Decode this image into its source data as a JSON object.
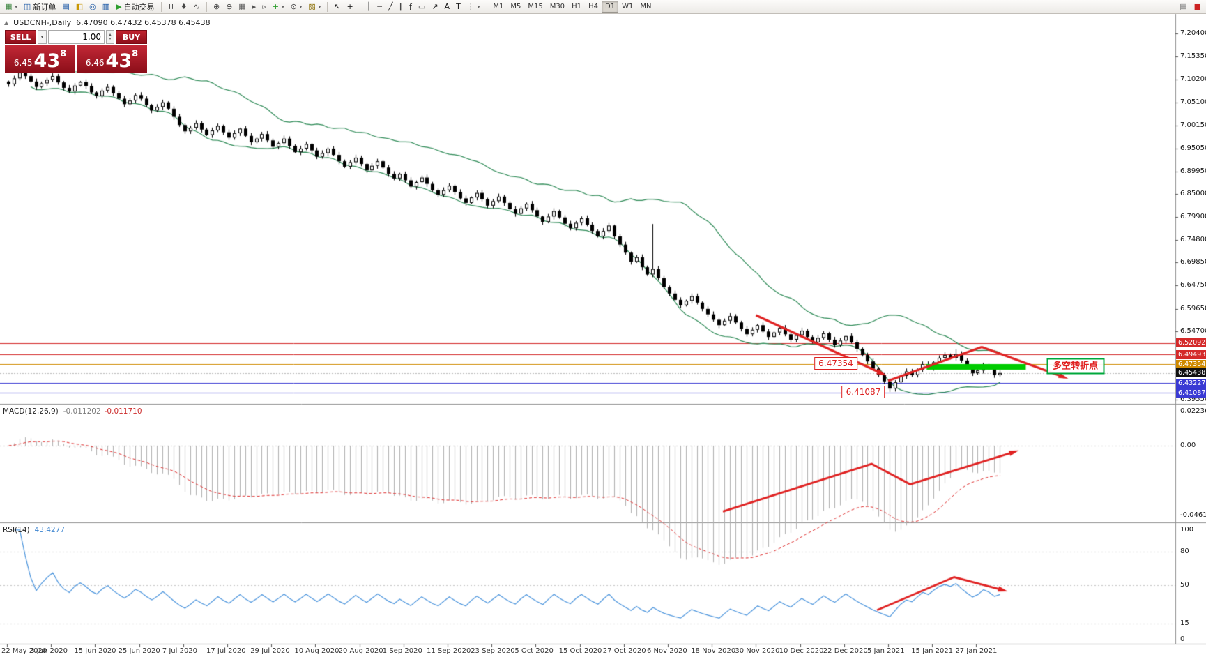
{
  "symbol_info": {
    "title": "USDCNH-,Daily",
    "ohlc": "6.47090 6.47432 6.45378 6.45438"
  },
  "toolbar": {
    "left_items": [
      {
        "name": "new-chart",
        "glyph": "▦",
        "color": "#2e7d32",
        "caret": true
      },
      {
        "name": "new-order",
        "glyph": "◫",
        "label": "新订单",
        "color": "#1a57a5"
      },
      {
        "name": "market-watch",
        "glyph": "▤",
        "color": "#1a57a5"
      },
      {
        "name": "data-window",
        "glyph": "◧",
        "color": "#c99700"
      },
      {
        "name": "navigator",
        "glyph": "◎",
        "color": "#1a57a5"
      },
      {
        "name": "terminal",
        "glyph": "▥",
        "color": "#1a57a5"
      },
      {
        "name": "autotrading",
        "glyph": "▶",
        "label": "自动交易",
        "color": "#2e9f2e"
      },
      {
        "sep": true
      },
      {
        "name": "bar-chart",
        "glyph": "≡",
        "color": "#444",
        "rot": true
      },
      {
        "name": "candlestick-chart",
        "glyph": "♦",
        "color": "#444"
      },
      {
        "name": "line-chart",
        "glyph": "∿",
        "color": "#444"
      },
      {
        "sep": true
      },
      {
        "name": "zoom-in",
        "glyph": "⊕",
        "color": "#444"
      },
      {
        "name": "zoom-out",
        "glyph": "⊖",
        "color": "#444"
      },
      {
        "name": "tile-windows",
        "glyph": "▦",
        "color": "#555"
      },
      {
        "name": "auto-scroll",
        "glyph": "▸",
        "color": "#555"
      },
      {
        "name": "chart-shift",
        "glyph": "▹",
        "color": "#555"
      },
      {
        "name": "indicators",
        "glyph": "+",
        "color": "#2e9f2e",
        "caret": true
      },
      {
        "name": "periods",
        "glyph": "⊙",
        "color": "#444",
        "caret": true
      },
      {
        "name": "templates",
        "glyph": "▧",
        "color": "#8a6d00",
        "caret": true
      },
      {
        "sep": true
      },
      {
        "name": "cursor",
        "glyph": "↖",
        "color": "#222"
      },
      {
        "name": "crosshair",
        "glyph": "+",
        "color": "#222"
      },
      {
        "sep": true
      },
      {
        "name": "vertical-line",
        "glyph": "│",
        "color": "#222"
      },
      {
        "name": "horizontal-line",
        "glyph": "─",
        "color": "#222"
      },
      {
        "name": "trendline",
        "glyph": "╱",
        "color": "#222"
      },
      {
        "name": "equidistant-channel",
        "glyph": "∥",
        "color": "#222"
      },
      {
        "name": "fibonacci",
        "glyph": "ƒ",
        "color": "#222"
      },
      {
        "name": "shapes",
        "glyph": "▭",
        "color": "#222"
      },
      {
        "name": "arrows",
        "glyph": "↗",
        "color": "#222"
      },
      {
        "name": "text",
        "glyph": "A",
        "color": "#222"
      },
      {
        "name": "text-label",
        "glyph": "T",
        "color": "#222"
      },
      {
        "name": "more-tools",
        "glyph": "⋮",
        "color": "#222",
        "caret": true
      }
    ],
    "timeframes": [
      "M1",
      "M5",
      "M15",
      "M30",
      "H1",
      "H4",
      "D1",
      "W1",
      "MN"
    ],
    "active_timeframe": "D1",
    "right_items": [
      {
        "name": "chart-list",
        "glyph": "▤",
        "color": "#777"
      },
      {
        "name": "alert",
        "glyph": "■",
        "color": "#cc2222"
      }
    ]
  },
  "tr": "",
  "trade_panel": {
    "sell_label": "SELL",
    "buy_label": "BUY",
    "volume": "1.00",
    "sell_price": {
      "prefix": "6.45",
      "big": "43",
      "sup": "8"
    },
    "buy_price": {
      "prefix": "6.46",
      "big": "43",
      "sup": "8"
    },
    "panel_color": "#a6121f"
  },
  "chart_data": {
    "type": "candlestick",
    "symbol": "USDCNH-",
    "timeframe": "Daily",
    "annotation_color": "#e02222",
    "bull_color": "#ffffff",
    "bear_color": "#000000",
    "closes": [
      7.092,
      7.105,
      7.118,
      7.11,
      7.098,
      7.086,
      7.094,
      7.102,
      7.11,
      7.096,
      7.084,
      7.076,
      7.089,
      7.097,
      7.088,
      7.074,
      7.066,
      7.078,
      7.086,
      7.072,
      7.06,
      7.048,
      7.056,
      7.068,
      7.06,
      7.046,
      7.034,
      7.042,
      7.052,
      7.038,
      7.02,
      7.002,
      6.988,
      6.996,
      7.006,
      6.992,
      6.98,
      6.99,
      7.0,
      6.986,
      6.974,
      6.984,
      6.994,
      6.978,
      6.964,
      6.972,
      6.982,
      6.968,
      6.954,
      6.962,
      6.972,
      6.956,
      6.942,
      6.95,
      6.96,
      6.946,
      6.932,
      6.94,
      6.95,
      6.936,
      6.922,
      6.91,
      6.92,
      6.93,
      6.916,
      6.902,
      6.912,
      6.922,
      6.908,
      6.894,
      6.884,
      6.894,
      6.88,
      6.866,
      6.876,
      6.886,
      6.872,
      6.858,
      6.848,
      6.858,
      6.868,
      6.854,
      6.84,
      6.83,
      6.842,
      6.852,
      6.838,
      6.824,
      6.834,
      6.844,
      6.83,
      6.816,
      6.806,
      6.818,
      6.828,
      6.814,
      6.8,
      6.788,
      6.8,
      6.812,
      6.798,
      6.784,
      6.774,
      6.786,
      6.796,
      6.782,
      6.768,
      6.756,
      6.768,
      6.78,
      6.756,
      6.738,
      6.72,
      6.7,
      6.71,
      6.688,
      6.672,
      6.684,
      6.664,
      6.644,
      6.63,
      6.616,
      6.604,
      6.614,
      6.624,
      6.61,
      6.596,
      6.584,
      6.572,
      6.56,
      6.57,
      6.58,
      6.566,
      6.552,
      6.54,
      6.55,
      6.56,
      6.546,
      6.534,
      6.544,
      6.554,
      6.54,
      6.528,
      6.538,
      6.548,
      6.534,
      6.522,
      6.532,
      6.542,
      6.528,
      6.516,
      6.526,
      6.536,
      6.522,
      6.508,
      6.494,
      6.48,
      6.464,
      6.45,
      6.436,
      6.42,
      6.434,
      6.448,
      6.458,
      6.45,
      6.462,
      6.474,
      6.466,
      6.478,
      6.488,
      6.494,
      6.488,
      6.496,
      6.482,
      6.468,
      6.454,
      6.46,
      6.472,
      6.464,
      6.45,
      6.4544
    ],
    "wick_overrides": {
      "117": {
        "high_extra": 0.095
      },
      "160": {
        "low_extra": 0.004
      },
      "172": {
        "high_extra": 0.006
      }
    },
    "bollinger": {
      "period": 20,
      "deviation": 2,
      "color": "#2e8b57"
    },
    "y_ticks": [
      "7.20400",
      "7.15350",
      "7.10200",
      "7.05100",
      "7.00150",
      "6.95050",
      "6.89950",
      "6.85000",
      "6.79900",
      "6.74800",
      "6.69850",
      "6.64750",
      "6.59650",
      "6.54700",
      "6.39550"
    ],
    "levels": [
      {
        "label": "6.52092",
        "color": "#d42a2a",
        "style": "solid"
      },
      {
        "label": "6.49493",
        "color": "#d42a2a",
        "style": "solid"
      },
      {
        "label": "6.47354",
        "color": "#cf8a00",
        "style": "solid"
      },
      {
        "label": "6.45438",
        "color": "#b8b8b8",
        "style": "dotted",
        "tag_bg": "#111111"
      },
      {
        "label": "6.43227",
        "color": "#3a3ad4",
        "style": "solid"
      },
      {
        "label": "6.41087",
        "color": "#3a3ad4",
        "style": "solid"
      }
    ],
    "x_labels": [
      {
        "text": "22 May 2020",
        "idx": 0
      },
      {
        "text": "3 Jun 2020",
        "idx": 8
      },
      {
        "text": "15 Jun 2020",
        "idx": 16
      },
      {
        "text": "25 Jun 2020",
        "idx": 24
      },
      {
        "text": "7 Jul 2020",
        "idx": 32
      },
      {
        "text": "17 Jul 2020",
        "idx": 40
      },
      {
        "text": "29 Jul 2020",
        "idx": 48
      },
      {
        "text": "10 Aug 2020",
        "idx": 56
      },
      {
        "text": "20 Aug 2020",
        "idx": 64
      },
      {
        "text": "1 Sep 2020",
        "idx": 72
      },
      {
        "text": "11 Sep 2020",
        "idx": 80
      },
      {
        "text": "23 Sep 2020",
        "idx": 88
      },
      {
        "text": "5 Oct 2020",
        "idx": 96
      },
      {
        "text": "15 Oct 2020",
        "idx": 104
      },
      {
        "text": "27 Oct 2020",
        "idx": 112
      },
      {
        "text": "6 Nov 2020",
        "idx": 120
      },
      {
        "text": "18 Nov 2020",
        "idx": 128
      },
      {
        "text": "30 Nov 2020",
        "idx": 136
      },
      {
        "text": "10 Dec 2020",
        "idx": 144
      },
      {
        "text": "22 Dec 2020",
        "idx": 152
      },
      {
        "text": "5 Jan 2021",
        "idx": 160
      },
      {
        "text": "15 Jan 2021",
        "idx": 168
      },
      {
        "text": "27 Jan 2021",
        "idx": 176
      }
    ],
    "annotations": {
      "green_zone": {
        "idx_from": 167,
        "idx_to": 185,
        "price": 6.468,
        "color": "#00cc00"
      },
      "label_647354": {
        "text": "6.47354",
        "idx": 150.5,
        "price": 6.4757
      },
      "label_641087": {
        "text": "6.41087",
        "idx": 155.5,
        "price": 6.4127
      },
      "turning_point": {
        "text": "多空转折点",
        "idx": 194,
        "price": 6.4696
      },
      "arrows": [
        {
          "points": [
            [
              136,
              6.582
            ],
            [
              159,
              6.4526
            ]
          ],
          "head": true
        },
        {
          "points": [
            [
              160,
              6.437
            ],
            [
              177,
              6.512
            ]
          ],
          "head": false
        },
        {
          "points": [
            [
              177,
              6.512
            ],
            [
              192,
              6.445
            ]
          ],
          "head": true
        }
      ]
    }
  },
  "macd": {
    "label": "MACD(12,26,9)",
    "value_main": "-0.011202",
    "value_signal": "-0.011710",
    "fast": 12,
    "slow": 26,
    "signal": 9,
    "scale_ticks": [
      "0.022362",
      "0.00",
      "-0.046166"
    ],
    "histogram_color": "#b0b0b0",
    "signal_color": "#e03030",
    "arrow": {
      "points": [
        [
          130,
          -0.0435
        ],
        [
          157,
          -0.012
        ],
        [
          164,
          -0.0255
        ],
        [
          183,
          -0.004
        ]
      ],
      "head": true
    }
  },
  "rsi": {
    "label": "RSI(14)",
    "value_text": "43.4277",
    "period": 14,
    "levels": [
      80,
      50,
      15
    ],
    "scale_ticks": [
      "100",
      "80",
      "50",
      "15",
      "0"
    ],
    "line_color": "#4a94dd",
    "arrow": {
      "points": [
        [
          158,
          27
        ],
        [
          172,
          57
        ],
        [
          181,
          45
        ]
      ],
      "head": true
    }
  }
}
